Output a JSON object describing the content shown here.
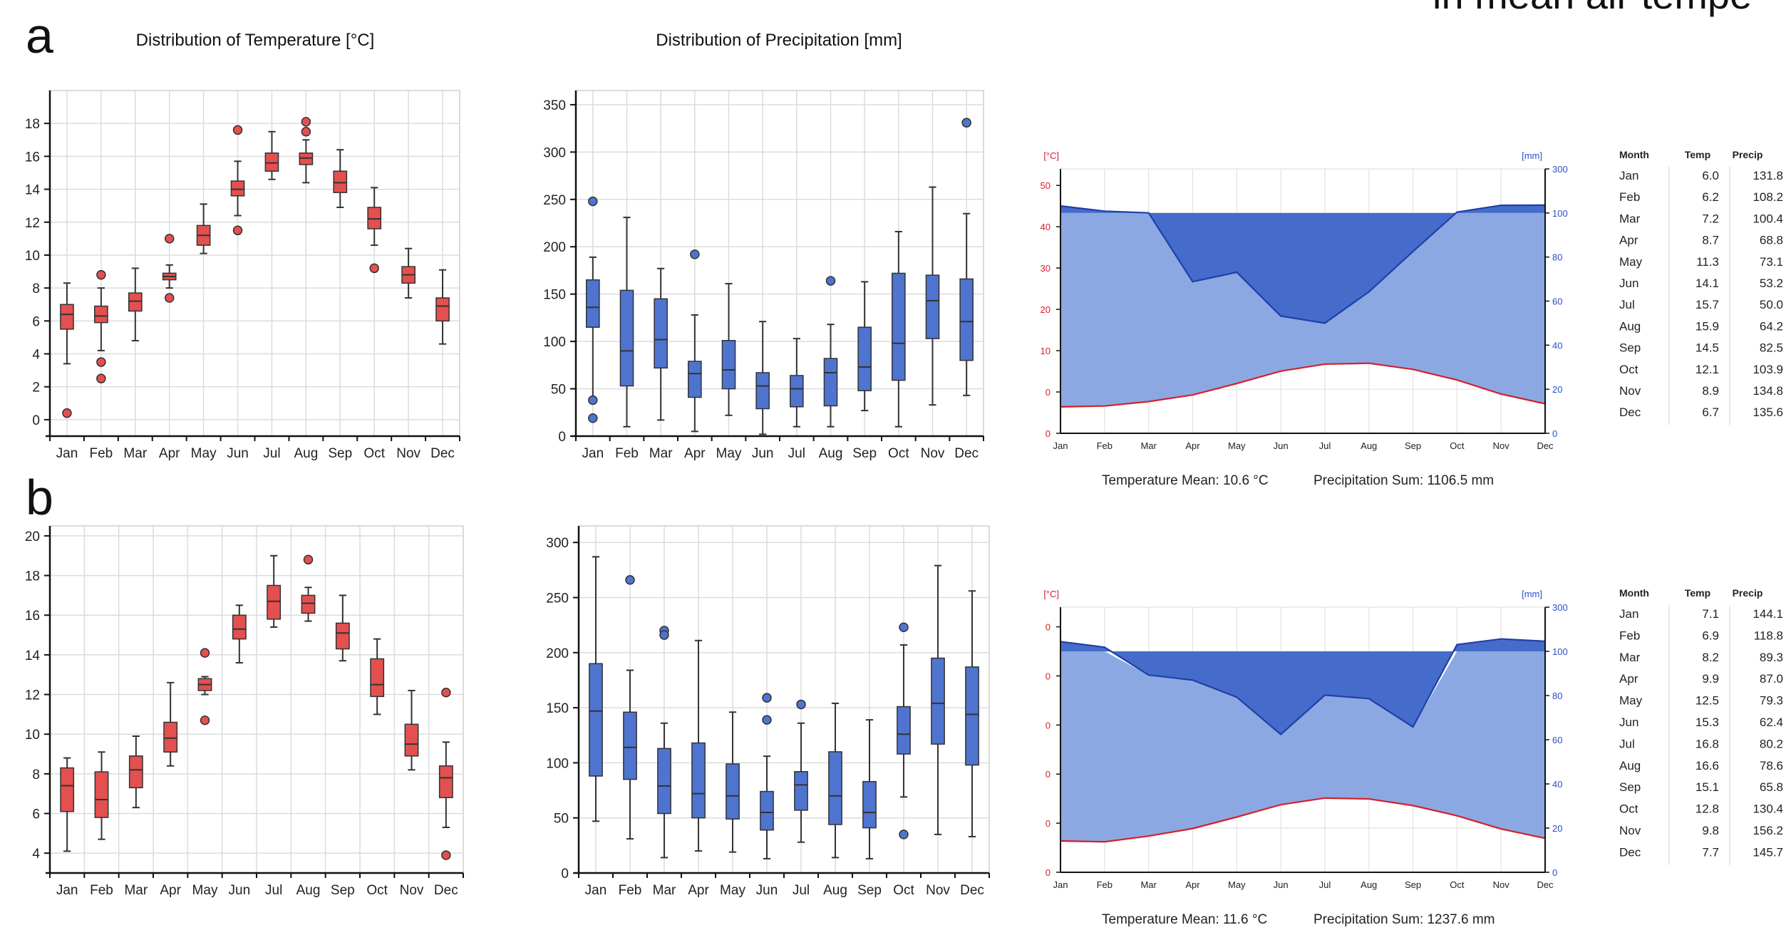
{
  "heading_fragment": "in mean air tempe",
  "colors": {
    "temp_box": "#e3504f",
    "precip_box": "#4f74d0",
    "area_fill": "#8ca8e2",
    "area_dark": "#3b64c8",
    "temp_line": "#d4202a",
    "precip_line": "#1f3fa8"
  },
  "chart_data": [
    {
      "panel": "a",
      "type": "boxplot",
      "title": "Distribution of Temperature [°C]",
      "categories": [
        "Jan",
        "Feb",
        "Mar",
        "Apr",
        "May",
        "Jun",
        "Jul",
        "Aug",
        "Sep",
        "Oct",
        "Nov",
        "Dec"
      ],
      "ylim": [
        -1,
        20
      ],
      "yticks": [
        0,
        2,
        4,
        6,
        8,
        10,
        12,
        14,
        16,
        18
      ],
      "boxes": [
        {
          "min": 3.4,
          "q1": 5.5,
          "median": 6.4,
          "q3": 7.0,
          "max": 8.3,
          "outliers": [
            0.4
          ]
        },
        {
          "min": 4.2,
          "q1": 5.9,
          "median": 6.3,
          "q3": 6.9,
          "max": 8.0,
          "outliers": [
            8.8,
            3.5,
            2.5
          ]
        },
        {
          "min": 4.8,
          "q1": 6.6,
          "median": 7.2,
          "q3": 7.7,
          "max": 9.2,
          "outliers": []
        },
        {
          "min": 8.0,
          "q1": 8.5,
          "median": 8.7,
          "q3": 8.9,
          "max": 9.4,
          "outliers": [
            11.0,
            7.4
          ]
        },
        {
          "min": 10.1,
          "q1": 10.6,
          "median": 11.2,
          "q3": 11.8,
          "max": 13.1,
          "outliers": []
        },
        {
          "min": 12.4,
          "q1": 13.6,
          "median": 14.0,
          "q3": 14.5,
          "max": 15.7,
          "outliers": [
            17.6,
            11.5
          ]
        },
        {
          "min": 14.6,
          "q1": 15.1,
          "median": 15.6,
          "q3": 16.2,
          "max": 17.5,
          "outliers": []
        },
        {
          "min": 14.4,
          "q1": 15.5,
          "median": 15.9,
          "q3": 16.2,
          "max": 17.0,
          "outliers": [
            18.1,
            17.5
          ]
        },
        {
          "min": 12.9,
          "q1": 13.8,
          "median": 14.4,
          "q3": 15.1,
          "max": 16.4,
          "outliers": []
        },
        {
          "min": 10.6,
          "q1": 11.6,
          "median": 12.2,
          "q3": 12.9,
          "max": 14.1,
          "outliers": [
            9.2
          ]
        },
        {
          "min": 7.4,
          "q1": 8.3,
          "median": 8.8,
          "q3": 9.3,
          "max": 10.4,
          "outliers": []
        },
        {
          "min": 4.6,
          "q1": 6.0,
          "median": 6.9,
          "q3": 7.4,
          "max": 9.1,
          "outliers": []
        }
      ]
    },
    {
      "panel": "a",
      "type": "boxplot",
      "title": "Distribution of Precipitation [mm]",
      "categories": [
        "Jan",
        "Feb",
        "Mar",
        "Apr",
        "May",
        "Jun",
        "Jul",
        "Aug",
        "Sep",
        "Oct",
        "Nov",
        "Dec"
      ],
      "ylim": [
        0,
        365
      ],
      "yticks": [
        0,
        50,
        100,
        150,
        200,
        250,
        300,
        350
      ],
      "boxes": [
        {
          "min": 40,
          "q1": 115,
          "median": 136,
          "q3": 165,
          "max": 189,
          "outliers": [
            248,
            38,
            19
          ]
        },
        {
          "min": 10,
          "q1": 53,
          "median": 90,
          "q3": 154,
          "max": 231,
          "outliers": []
        },
        {
          "min": 17,
          "q1": 72,
          "median": 102,
          "q3": 145,
          "max": 177,
          "outliers": []
        },
        {
          "min": 5,
          "q1": 41,
          "median": 66,
          "q3": 79,
          "max": 128,
          "outliers": [
            192
          ]
        },
        {
          "min": 22,
          "q1": 50,
          "median": 70,
          "q3": 101,
          "max": 161,
          "outliers": []
        },
        {
          "min": 2,
          "q1": 29,
          "median": 53,
          "q3": 67,
          "max": 121,
          "outliers": []
        },
        {
          "min": 10,
          "q1": 31,
          "median": 50,
          "q3": 64,
          "max": 103,
          "outliers": []
        },
        {
          "min": 10,
          "q1": 32,
          "median": 67,
          "q3": 82,
          "max": 118,
          "outliers": [
            164
          ]
        },
        {
          "min": 27,
          "q1": 48,
          "median": 73,
          "q3": 115,
          "max": 163,
          "outliers": []
        },
        {
          "min": 10,
          "q1": 59,
          "median": 98,
          "q3": 172,
          "max": 216,
          "outliers": []
        },
        {
          "min": 33,
          "q1": 103,
          "median": 143,
          "q3": 170,
          "max": 263,
          "outliers": []
        },
        {
          "min": 43,
          "q1": 80,
          "median": 121,
          "q3": 166,
          "max": 235,
          "outliers": [
            331
          ]
        }
      ]
    },
    {
      "panel": "a",
      "type": "area",
      "subtype": "climate-diagram",
      "categories": [
        "Jan",
        "Feb",
        "Mar",
        "Apr",
        "May",
        "Jun",
        "Jul",
        "Aug",
        "Sep",
        "Oct",
        "Nov",
        "Dec"
      ],
      "left_unit": "[°C]",
      "right_unit": "[mm]",
      "left_ticks": [
        "0",
        "0",
        "10",
        "20",
        "30",
        "40",
        "50"
      ],
      "right_ticks": [
        "0",
        "20",
        "40",
        "60",
        "80",
        "100",
        "300"
      ],
      "temperature": [
        6.0,
        6.2,
        7.2,
        8.7,
        11.3,
        14.1,
        15.7,
        15.9,
        14.5,
        12.1,
        8.9,
        6.7
      ],
      "precipitation": [
        131.8,
        108.2,
        100.4,
        68.8,
        73.1,
        53.2,
        50.0,
        64.2,
        82.5,
        103.9,
        134.8,
        135.6
      ],
      "footer_mean": "Temperature Mean: 10.6 °C",
      "footer_sum": "Precipitation Sum: 1106.5 mm"
    },
    {
      "panel": "b",
      "type": "boxplot",
      "categories": [
        "Jan",
        "Feb",
        "Mar",
        "Apr",
        "May",
        "Jun",
        "Jul",
        "Aug",
        "Sep",
        "Oct",
        "Nov",
        "Dec"
      ],
      "ylim": [
        3,
        20.5
      ],
      "yticks": [
        4,
        6,
        8,
        10,
        12,
        14,
        16,
        18,
        20
      ],
      "boxes": [
        {
          "min": 4.1,
          "q1": 6.1,
          "median": 7.4,
          "q3": 8.3,
          "max": 8.8,
          "outliers": []
        },
        {
          "min": 4.7,
          "q1": 5.8,
          "median": 6.7,
          "q3": 8.1,
          "max": 9.1,
          "outliers": []
        },
        {
          "min": 6.3,
          "q1": 7.3,
          "median": 8.2,
          "q3": 8.9,
          "max": 9.9,
          "outliers": []
        },
        {
          "min": 8.4,
          "q1": 9.1,
          "median": 9.8,
          "q3": 10.6,
          "max": 12.6,
          "outliers": []
        },
        {
          "min": 12.0,
          "q1": 12.2,
          "median": 12.5,
          "q3": 12.8,
          "max": 12.9,
          "outliers": [
            14.1,
            10.7
          ]
        },
        {
          "min": 13.6,
          "q1": 14.8,
          "median": 15.3,
          "q3": 16.0,
          "max": 16.5,
          "outliers": []
        },
        {
          "min": 15.4,
          "q1": 15.8,
          "median": 16.7,
          "q3": 17.5,
          "max": 19.0,
          "outliers": []
        },
        {
          "min": 15.7,
          "q1": 16.1,
          "median": 16.6,
          "q3": 17.0,
          "max": 17.4,
          "outliers": [
            18.8
          ]
        },
        {
          "min": 13.7,
          "q1": 14.3,
          "median": 15.1,
          "q3": 15.6,
          "max": 17.0,
          "outliers": []
        },
        {
          "min": 11.0,
          "q1": 11.9,
          "median": 12.5,
          "q3": 13.8,
          "max": 14.8,
          "outliers": []
        },
        {
          "min": 8.2,
          "q1": 8.9,
          "median": 9.5,
          "q3": 10.5,
          "max": 12.2,
          "outliers": []
        },
        {
          "min": 5.3,
          "q1": 6.8,
          "median": 7.8,
          "q3": 8.4,
          "max": 9.6,
          "outliers": [
            12.1,
            3.9
          ]
        }
      ]
    },
    {
      "panel": "b",
      "type": "boxplot",
      "categories": [
        "Jan",
        "Feb",
        "Mar",
        "Apr",
        "May",
        "Jun",
        "Jul",
        "Aug",
        "Sep",
        "Oct",
        "Nov",
        "Dec"
      ],
      "ylim": [
        0,
        315
      ],
      "yticks": [
        0,
        50,
        100,
        150,
        200,
        250,
        300
      ],
      "boxes": [
        {
          "min": 47,
          "q1": 88,
          "median": 147,
          "q3": 190,
          "max": 287,
          "outliers": []
        },
        {
          "min": 31,
          "q1": 85,
          "median": 114,
          "q3": 146,
          "max": 184,
          "outliers": [
            266
          ]
        },
        {
          "min": 14,
          "q1": 54,
          "median": 79,
          "q3": 113,
          "max": 136,
          "outliers": [
            220,
            216
          ]
        },
        {
          "min": 20,
          "q1": 50,
          "median": 72,
          "q3": 118,
          "max": 211,
          "outliers": []
        },
        {
          "min": 19,
          "q1": 49,
          "median": 70,
          "q3": 99,
          "max": 146,
          "outliers": []
        },
        {
          "min": 13,
          "q1": 39,
          "median": 55,
          "q3": 74,
          "max": 106,
          "outliers": [
            159,
            139
          ]
        },
        {
          "min": 28,
          "q1": 57,
          "median": 80,
          "q3": 92,
          "max": 136,
          "outliers": [
            153
          ]
        },
        {
          "min": 14,
          "q1": 44,
          "median": 70,
          "q3": 110,
          "max": 154,
          "outliers": []
        },
        {
          "min": 13,
          "q1": 41,
          "median": 55,
          "q3": 83,
          "max": 139,
          "outliers": []
        },
        {
          "min": 69,
          "q1": 108,
          "median": 126,
          "q3": 151,
          "max": 207,
          "outliers": [
            223,
            35
          ]
        },
        {
          "min": 35,
          "q1": 117,
          "median": 154,
          "q3": 195,
          "max": 279,
          "outliers": []
        },
        {
          "min": 33,
          "q1": 98,
          "median": 144,
          "q3": 187,
          "max": 256,
          "outliers": []
        }
      ]
    },
    {
      "panel": "b",
      "type": "area",
      "subtype": "climate-diagram",
      "categories": [
        "Jan",
        "Feb",
        "Mar",
        "Apr",
        "May",
        "Jun",
        "Jul",
        "Aug",
        "Sep",
        "Oct",
        "Nov",
        "Dec"
      ],
      "left_unit": "[°C]",
      "right_unit": "[mm]",
      "left_ticks": [
        "0",
        "0",
        "0",
        "0",
        "0",
        "0"
      ],
      "right_ticks": [
        "0",
        "20",
        "40",
        "60",
        "80",
        "100",
        "300"
      ],
      "temperature": [
        7.1,
        6.9,
        8.2,
        9.9,
        12.5,
        15.3,
        16.8,
        16.6,
        15.1,
        12.8,
        9.8,
        7.7
      ],
      "precipitation": [
        144.1,
        118.8,
        89.3,
        87.0,
        79.3,
        62.4,
        80.2,
        78.6,
        65.8,
        130.4,
        156.2,
        145.7
      ],
      "footer_mean": "Temperature Mean: 11.6 °C",
      "footer_sum": "Precipitation Sum: 1237.6 mm"
    }
  ],
  "tables": [
    {
      "headers": [
        "Month",
        "Temp",
        "Precip"
      ],
      "rows": [
        [
          "Jan",
          "6.0",
          "131.8"
        ],
        [
          "Feb",
          "6.2",
          "108.2"
        ],
        [
          "Mar",
          "7.2",
          "100.4"
        ],
        [
          "Apr",
          "8.7",
          "68.8"
        ],
        [
          "May",
          "11.3",
          "73.1"
        ],
        [
          "Jun",
          "14.1",
          "53.2"
        ],
        [
          "Jul",
          "15.7",
          "50.0"
        ],
        [
          "Aug",
          "15.9",
          "64.2"
        ],
        [
          "Sep",
          "14.5",
          "82.5"
        ],
        [
          "Oct",
          "12.1",
          "103.9"
        ],
        [
          "Nov",
          "8.9",
          "134.8"
        ],
        [
          "Dec",
          "6.7",
          "135.6"
        ]
      ]
    },
    {
      "headers": [
        "Month",
        "Temp",
        "Precip"
      ],
      "rows": [
        [
          "Jan",
          "7.1",
          "144.1"
        ],
        [
          "Feb",
          "6.9",
          "118.8"
        ],
        [
          "Mar",
          "8.2",
          "89.3"
        ],
        [
          "Apr",
          "9.9",
          "87.0"
        ],
        [
          "May",
          "12.5",
          "79.3"
        ],
        [
          "Jun",
          "15.3",
          "62.4"
        ],
        [
          "Jul",
          "16.8",
          "80.2"
        ],
        [
          "Aug",
          "16.6",
          "78.6"
        ],
        [
          "Sep",
          "15.1",
          "65.8"
        ],
        [
          "Oct",
          "12.8",
          "130.4"
        ],
        [
          "Nov",
          "9.8",
          "156.2"
        ],
        [
          "Dec",
          "7.7",
          "145.7"
        ]
      ]
    }
  ],
  "panel_labels": [
    "a",
    "b"
  ]
}
